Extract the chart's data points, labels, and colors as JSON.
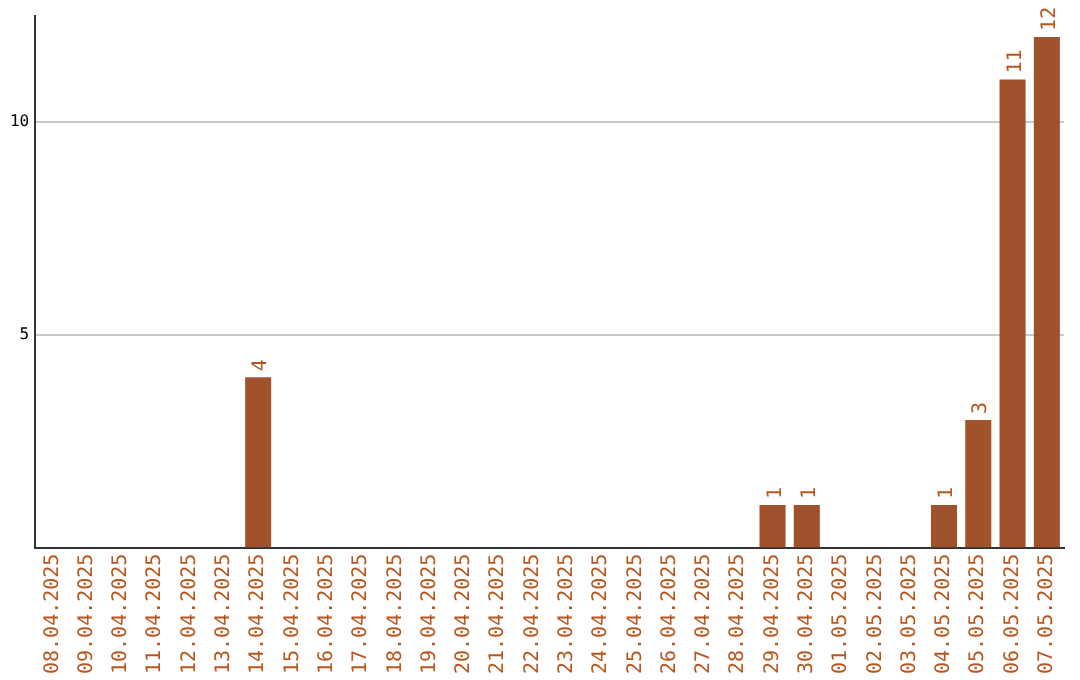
{
  "chart_data": {
    "type": "bar",
    "categories": [
      "08.04.2025",
      "09.04.2025",
      "10.04.2025",
      "11.04.2025",
      "12.04.2025",
      "13.04.2025",
      "14.04.2025",
      "15.04.2025",
      "16.04.2025",
      "17.04.2025",
      "18.04.2025",
      "19.04.2025",
      "20.04.2025",
      "21.04.2025",
      "22.04.2025",
      "23.04.2025",
      "24.04.2025",
      "25.04.2025",
      "26.04.2025",
      "27.04.2025",
      "28.04.2025",
      "29.04.2025",
      "30.04.2025",
      "01.05.2025",
      "02.05.2025",
      "03.05.2025",
      "04.05.2025",
      "05.05.2025",
      "06.05.2025",
      "07.05.2025"
    ],
    "values": [
      0,
      0,
      0,
      0,
      0,
      0,
      4,
      0,
      0,
      0,
      0,
      0,
      0,
      0,
      0,
      0,
      0,
      0,
      0,
      0,
      0,
      1,
      1,
      0,
      0,
      0,
      1,
      3,
      11,
      12
    ],
    "value_labels": [
      null,
      null,
      null,
      null,
      null,
      null,
      "4",
      null,
      null,
      null,
      null,
      null,
      null,
      null,
      null,
      null,
      null,
      null,
      null,
      null,
      null,
      "1",
      "1",
      null,
      null,
      null,
      "1",
      "3",
      "11",
      "12"
    ],
    "color": "#a0522d",
    "ylim": [
      0,
      12.5
    ],
    "yticks": [
      5,
      10
    ],
    "grid": "y",
    "legend": false
  }
}
